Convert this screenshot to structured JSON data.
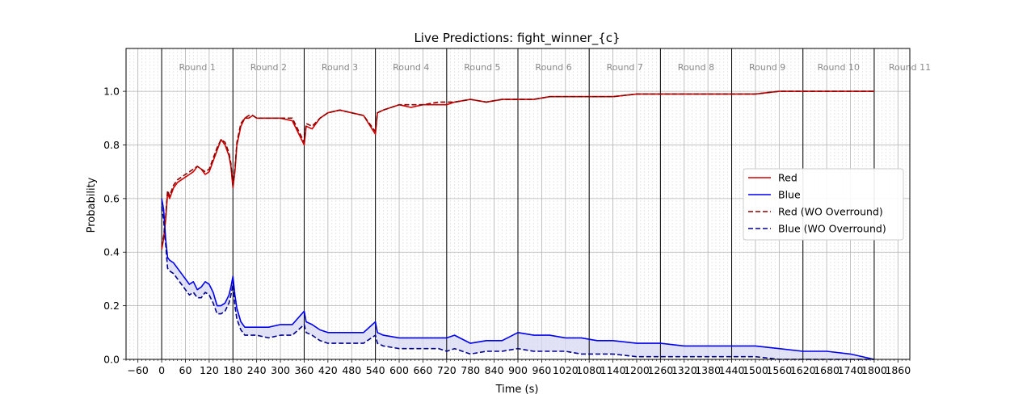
{
  "chart_data": {
    "type": "line",
    "title": "Live Predictions: fight_winner_{c}",
    "xlabel": "Time (s)",
    "ylabel": "Probability",
    "xlim": [
      -90,
      1890
    ],
    "ylim": [
      0,
      1.16
    ],
    "grid": true,
    "legend_position": "center-right",
    "x_ticks": [
      -60,
      0,
      60,
      120,
      180,
      240,
      300,
      360,
      420,
      480,
      540,
      600,
      660,
      720,
      780,
      840,
      900,
      960,
      1020,
      1080,
      1140,
      1200,
      1260,
      1320,
      1380,
      1440,
      1500,
      1560,
      1620,
      1680,
      1740,
      1800,
      1860
    ],
    "y_ticks": [
      "0.0",
      "0.2",
      "0.4",
      "0.6",
      "0.8",
      "1.0"
    ],
    "round_boundaries": [
      0,
      180,
      360,
      540,
      720,
      900,
      1080,
      1260,
      1440,
      1620,
      1800
    ],
    "round_labels": [
      "Round 1",
      "Round 2",
      "Round 3",
      "Round 4",
      "Round 5",
      "Round 6",
      "Round 7",
      "Round 8",
      "Round 9",
      "Round 10",
      "Round 11"
    ],
    "colors": {
      "red": "#d00000",
      "blue": "#0000ee",
      "red_wo": "#8b0000",
      "blue_wo": "#00008b",
      "fill": "#d8d8f4"
    },
    "series": [
      {
        "name": "Red",
        "x": [
          0,
          5,
          10,
          15,
          20,
          30,
          40,
          50,
          60,
          70,
          80,
          90,
          100,
          110,
          120,
          130,
          140,
          150,
          160,
          170,
          175,
          180,
          185,
          190,
          200,
          210,
          220,
          230,
          240,
          270,
          300,
          330,
          360,
          365,
          380,
          400,
          420,
          450,
          480,
          510,
          540,
          545,
          560,
          600,
          630,
          660,
          700,
          720,
          740,
          780,
          820,
          860,
          900,
          940,
          980,
          1020,
          1060,
          1100,
          1140,
          1200,
          1260,
          1320,
          1380,
          1440,
          1500,
          1560,
          1620,
          1680,
          1740,
          1800
        ],
        "y": [
          0.41,
          0.45,
          0.52,
          0.62,
          0.6,
          0.64,
          0.66,
          0.67,
          0.68,
          0.69,
          0.7,
          0.72,
          0.71,
          0.69,
          0.7,
          0.74,
          0.78,
          0.82,
          0.8,
          0.76,
          0.72,
          0.64,
          0.7,
          0.8,
          0.87,
          0.9,
          0.9,
          0.91,
          0.9,
          0.9,
          0.9,
          0.89,
          0.8,
          0.87,
          0.86,
          0.9,
          0.92,
          0.93,
          0.92,
          0.91,
          0.84,
          0.92,
          0.93,
          0.95,
          0.94,
          0.95,
          0.95,
          0.95,
          0.96,
          0.97,
          0.96,
          0.97,
          0.97,
          0.97,
          0.98,
          0.98,
          0.98,
          0.98,
          0.98,
          0.99,
          0.99,
          0.99,
          0.99,
          0.99,
          0.99,
          1.0,
          1.0,
          1.0,
          1.0,
          1.0
        ]
      },
      {
        "name": "Blue",
        "x": [
          0,
          5,
          10,
          15,
          20,
          30,
          40,
          50,
          60,
          70,
          80,
          90,
          100,
          110,
          120,
          130,
          140,
          150,
          160,
          170,
          175,
          180,
          185,
          190,
          200,
          210,
          220,
          230,
          240,
          270,
          300,
          330,
          360,
          365,
          380,
          400,
          420,
          450,
          480,
          510,
          540,
          545,
          560,
          600,
          630,
          660,
          700,
          720,
          740,
          780,
          820,
          860,
          900,
          940,
          980,
          1020,
          1060,
          1100,
          1140,
          1200,
          1260,
          1320,
          1380,
          1440,
          1500,
          1560,
          1620,
          1680,
          1740,
          1800
        ],
        "y": [
          0.6,
          0.56,
          0.45,
          0.38,
          0.37,
          0.36,
          0.34,
          0.32,
          0.3,
          0.28,
          0.29,
          0.26,
          0.27,
          0.29,
          0.28,
          0.25,
          0.2,
          0.2,
          0.21,
          0.24,
          0.27,
          0.31,
          0.24,
          0.19,
          0.14,
          0.12,
          0.12,
          0.12,
          0.12,
          0.12,
          0.13,
          0.13,
          0.18,
          0.14,
          0.13,
          0.11,
          0.1,
          0.1,
          0.1,
          0.1,
          0.14,
          0.1,
          0.09,
          0.08,
          0.08,
          0.08,
          0.08,
          0.08,
          0.09,
          0.06,
          0.07,
          0.07,
          0.1,
          0.09,
          0.09,
          0.08,
          0.08,
          0.07,
          0.07,
          0.06,
          0.06,
          0.05,
          0.05,
          0.05,
          0.05,
          0.04,
          0.03,
          0.03,
          0.02,
          0.0
        ]
      },
      {
        "name": "Red (WO Overround)",
        "x": [
          0,
          5,
          10,
          15,
          20,
          30,
          40,
          50,
          60,
          70,
          80,
          90,
          100,
          110,
          120,
          130,
          140,
          150,
          160,
          170,
          175,
          180,
          185,
          190,
          200,
          210,
          220,
          230,
          240,
          270,
          300,
          330,
          360,
          365,
          380,
          400,
          420,
          450,
          480,
          510,
          540,
          545,
          560,
          600,
          630,
          660,
          700,
          720,
          740,
          780,
          820,
          860,
          900,
          940,
          980,
          1020,
          1060,
          1100,
          1140,
          1200,
          1260,
          1320,
          1380,
          1440,
          1500,
          1560,
          1620,
          1680,
          1740,
          1800
        ],
        "y": [
          0.42,
          0.46,
          0.53,
          0.63,
          0.61,
          0.65,
          0.67,
          0.68,
          0.69,
          0.7,
          0.71,
          0.72,
          0.71,
          0.7,
          0.71,
          0.75,
          0.79,
          0.82,
          0.81,
          0.77,
          0.73,
          0.65,
          0.71,
          0.81,
          0.88,
          0.9,
          0.91,
          0.91,
          0.9,
          0.9,
          0.9,
          0.9,
          0.81,
          0.88,
          0.87,
          0.9,
          0.92,
          0.93,
          0.92,
          0.91,
          0.85,
          0.92,
          0.93,
          0.95,
          0.95,
          0.95,
          0.96,
          0.96,
          0.96,
          0.97,
          0.96,
          0.97,
          0.97,
          0.97,
          0.98,
          0.98,
          0.98,
          0.98,
          0.98,
          0.99,
          0.99,
          0.99,
          0.99,
          0.99,
          0.99,
          1.0,
          1.0,
          1.0,
          1.0,
          1.0
        ]
      },
      {
        "name": "Blue (WO Overround)",
        "x": [
          0,
          5,
          10,
          15,
          20,
          30,
          40,
          50,
          60,
          70,
          80,
          90,
          100,
          110,
          120,
          130,
          140,
          150,
          160,
          170,
          175,
          180,
          185,
          190,
          200,
          210,
          220,
          230,
          240,
          270,
          300,
          330,
          360,
          365,
          380,
          400,
          420,
          450,
          480,
          510,
          540,
          545,
          560,
          600,
          630,
          660,
          700,
          720,
          740,
          780,
          820,
          860,
          900,
          940,
          980,
          1020,
          1060,
          1100,
          1140,
          1200,
          1260,
          1320,
          1380,
          1440,
          1500,
          1560,
          1620,
          1680,
          1740,
          1800
        ],
        "y": [
          0.57,
          0.52,
          0.43,
          0.34,
          0.33,
          0.32,
          0.3,
          0.28,
          0.26,
          0.24,
          0.25,
          0.23,
          0.23,
          0.25,
          0.24,
          0.21,
          0.17,
          0.17,
          0.18,
          0.21,
          0.24,
          0.28,
          0.2,
          0.15,
          0.11,
          0.09,
          0.09,
          0.09,
          0.09,
          0.08,
          0.09,
          0.09,
          0.13,
          0.1,
          0.09,
          0.07,
          0.06,
          0.06,
          0.06,
          0.06,
          0.09,
          0.06,
          0.05,
          0.04,
          0.04,
          0.04,
          0.04,
          0.03,
          0.04,
          0.02,
          0.03,
          0.03,
          0.04,
          0.03,
          0.03,
          0.03,
          0.02,
          0.02,
          0.02,
          0.01,
          0.01,
          0.01,
          0.01,
          0.01,
          0.01,
          0.0,
          0.0,
          0.0,
          0.0,
          0.0
        ]
      }
    ]
  }
}
